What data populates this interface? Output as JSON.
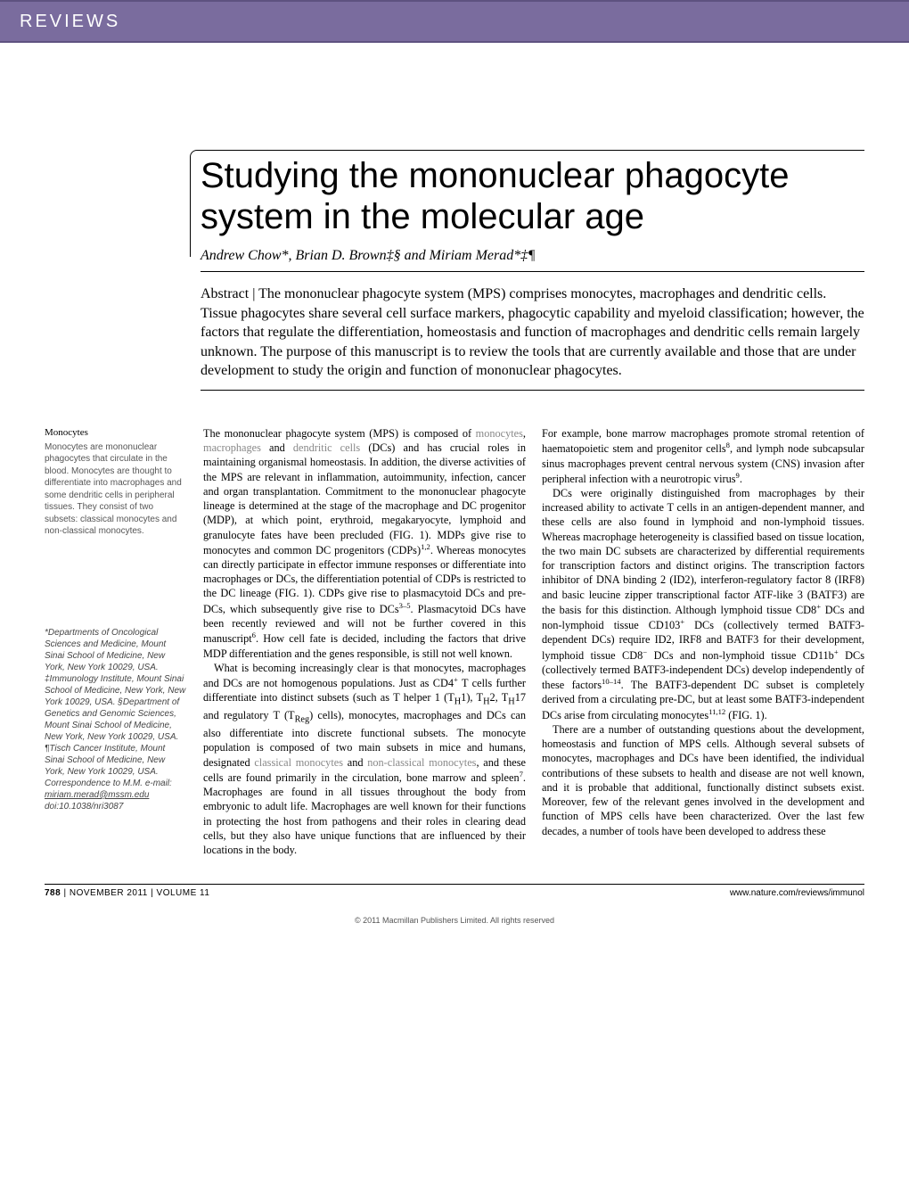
{
  "colors": {
    "header_band": "#7a6c9e",
    "header_band_border": "#5e5280",
    "text": "#000000",
    "sidebar_text": "#555555",
    "special_term": "#888888",
    "background": "#ffffff"
  },
  "typography": {
    "title_fontsize": 40,
    "title_weight": 300,
    "body_fontsize": 12.3,
    "sidebar_fontsize": 10,
    "abstract_fontsize": 16
  },
  "header": {
    "section_label": "REVIEWS"
  },
  "title": "Studying the mononuclear phagocyte system in the molecular age",
  "authors": "Andrew Chow*, Brian D. Brown‡§ and Miriam Merad*‡¶",
  "abstract": "Abstract | The mononuclear phagocyte system (MPS) comprises monocytes, macrophages and dendritic cells. Tissue phagocytes share several cell surface markers, phagocytic capability and myeloid classification; however, the factors that regulate the differentiation, homeostasis and function of macrophages and dendritic cells remain largely unknown. The purpose of this manuscript is to review the tools that are currently available and those that are under development to study the origin and function of mononuclear phagocytes.",
  "sidebar": {
    "term_title": "Monocytes",
    "term_body": "Monocytes are mononuclear phagocytes that circulate in the blood. Monocytes are thought to differentiate into macrophages and some dendritic cells in peripheral tissues. They consist of two subsets: classical monocytes and non-classical monocytes.",
    "affiliations": "*Departments of Oncological Sciences and Medicine, Mount Sinai School of Medicine, New York, New York 10029, USA. ‡Immunology Institute, Mount Sinai School of Medicine, New York, New York 10029, USA. §Department of Genetics and Genomic Sciences, Mount Sinai School of Medicine, New York, New York 10029, USA. ¶Tisch Cancer Institute, Mount Sinai School of Medicine, New York, New York 10029, USA. Correspondence to M.M. e-mail:",
    "email": "miriam.merad@mssm.edu",
    "doi": "doi:10.1038/nri3087"
  },
  "body": {
    "col1_html": "The mononuclear phagocyte system (MPS) is composed of <span class=\"special-term\">monocytes</span>, <span class=\"special-term\">macrophages</span> and <span class=\"special-term\">dendritic cells</span> (DCs) and has crucial roles in maintaining organismal homeostasis. In addition, the diverse activities of the MPS are relevant in inflammation, autoimmunity, infection, cancer and organ transplantation. Commitment to the mononuclear phagocyte lineage is determined at the stage of the macrophage and DC progenitor (MDP), at which point, erythroid, megakaryocyte, lymphoid and granulocyte fates have been precluded (FIG. 1). MDPs give rise to monocytes and common DC progenitors (CDPs)<sup>1,2</sup>. Whereas monocytes can directly participate in effector immune responses or differentiate into macrophages or DCs, the differentiation potential of CDPs is restricted to the DC lineage (FIG. 1). CDPs give rise to plasmacytoid DCs and pre-DCs, which subsequently give rise to DCs<sup>3–5</sup>. Plasmacytoid DCs have been recently reviewed and will not be further covered in this manuscript<sup>6</sup>. How cell fate is decided, including the factors that drive MDP differentiation and the genes responsible, is still not well known.",
    "col1_p2_html": "What is becoming increasingly clear is that monocytes, macrophages and DCs are not homogenous populations. Just as CD4<sup>+</sup> T cells further differentiate into distinct subsets (such as T helper 1 (T<sub>H</sub>1), T<sub>H</sub>2, T<sub>H</sub>17 and regulatory T (T<sub>Reg</sub>) cells), monocytes, macrophages and DCs can also differentiate into discrete functional subsets. The monocyte population is composed of two main subsets in mice and humans, designated <span class=\"special-term\">classical monocytes</span> and <span class=\"special-term\">non-classical monocytes</span>, and these cells are found primarily in the circulation, bone marrow and spleen<sup>7</sup>. Macrophages are found in all tissues throughout the body from embryonic to adult life. Macrophages are well known for their functions in protecting the host from pathogens and their roles in clearing dead cells, but they also have unique functions that are influenced by their locations in the body.",
    "col2_html": "For example, bone marrow macrophages promote stromal retention of haematopoietic stem and progenitor cells<sup>8</sup>, and lymph node subcapsular sinus macrophages prevent central nervous system (CNS) invasion after peripheral infection with a neurotropic virus<sup>9</sup>.",
    "col2_p2_html": "DCs were originally distinguished from macrophages by their increased ability to activate T cells in an antigen-dependent manner, and these cells are also found in lymphoid and non-lymphoid tissues. Whereas macrophage heterogeneity is classified based on tissue location, the two main DC subsets are characterized by differential requirements for transcription factors and distinct origins. The transcription factors inhibitor of DNA binding 2 (ID2), interferon-regulatory factor 8 (IRF8) and basic leucine zipper transcriptional factor ATF-like 3 (BATF3) are the basis for this distinction. Although lymphoid tissue CD8<sup>+</sup> DCs and non-lymphoid tissue CD103<sup>+</sup> DCs (collectively termed BATF3-dependent DCs) require ID2, IRF8 and BATF3 for their development, lymphoid tissue CD8<sup>−</sup> DCs and non-lymphoid tissue CD11b<sup>+</sup> DCs (collectively termed BATF3-independent DCs) develop independently of these factors<sup>10–14</sup>. The BATF3-dependent DC subset is completely derived from a circulating pre-DC, but at least some BATF3-independent DCs arise from circulating monocytes<sup>11,12</sup> (FIG. 1).",
    "col2_p3_html": "There are a number of outstanding questions about the development, homeostasis and function of MPS cells. Although several subsets of monocytes, macrophages and DCs have been identified, the individual contributions of these subsets to health and disease are not well known, and it is probable that additional, functionally distinct subsets exist. Moreover, few of the relevant genes involved in the development and function of MPS cells have been characterized. Over the last few decades, a number of tools have been developed to address these"
  },
  "footer": {
    "page_number": "788",
    "issue": "NOVEMBER 2011",
    "volume": "VOLUME 11",
    "url": "www.nature.com/reviews/immunol",
    "copyright": "© 2011 Macmillan Publishers Limited. All rights reserved"
  }
}
